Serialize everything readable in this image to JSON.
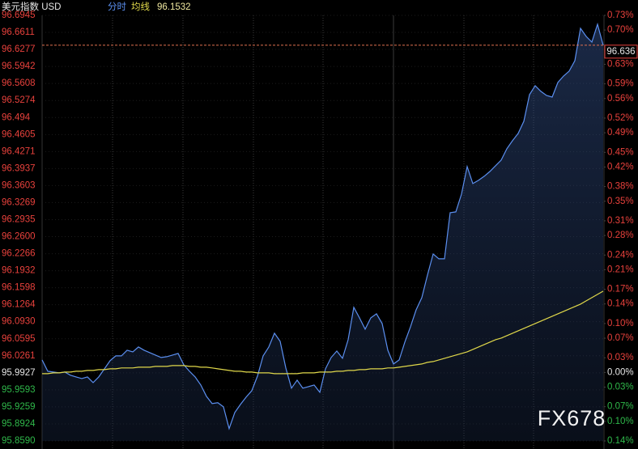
{
  "chart_data": {
    "type": "line",
    "title": "美元指数 USD",
    "watermark": "FX678",
    "current_price": 96.636,
    "ylim": [
      95.859,
      96.6945
    ],
    "yticks": [
      96.6945,
      96.6611,
      96.6277,
      96.5942,
      96.5608,
      96.5274,
      96.494,
      96.4605,
      96.4271,
      96.3937,
      96.3603,
      96.3269,
      96.2935,
      {
        "value": 96.26,
        "label": "96.2600"
      },
      96.2266,
      96.1932,
      96.1598,
      96.1264,
      {
        "value": 96.093,
        "label": "96.0930"
      },
      96.0595,
      96.0261,
      95.9927,
      95.9593,
      95.9259,
      95.8924,
      {
        "value": 95.859,
        "label": "95.8590"
      }
    ],
    "y2lim": [
      -0.14,
      0.73
    ],
    "y2ticks": [
      {
        "value": 0.73,
        "label": "0.73%"
      },
      {
        "value": 0.7,
        "label": "0.70%"
      },
      {
        "value": 0.66,
        "label": "0.66%"
      },
      {
        "value": 0.63,
        "label": "0.63%"
      },
      {
        "value": 0.59,
        "label": "0.59%"
      },
      {
        "value": 0.56,
        "label": "0.56%"
      },
      {
        "value": 0.52,
        "label": "0.52%"
      },
      {
        "value": 0.49,
        "label": "0.49%"
      },
      {
        "value": 0.45,
        "label": "0.45%"
      },
      {
        "value": 0.42,
        "label": "0.42%"
      },
      {
        "value": 0.38,
        "label": "0.38%"
      },
      {
        "value": 0.35,
        "label": "0.35%"
      },
      {
        "value": 0.31,
        "label": "0.31%"
      },
      {
        "value": 0.28,
        "label": "0.28%"
      },
      {
        "value": 0.24,
        "label": "0.24%"
      },
      {
        "value": 0.21,
        "label": "0.21%"
      },
      {
        "value": 0.17,
        "label": "0.17%"
      },
      {
        "value": 0.14,
        "label": "0.14%"
      },
      {
        "value": 0.1,
        "label": "0.10%"
      },
      {
        "value": 0.07,
        "label": "0.07%"
      },
      {
        "value": 0.03,
        "label": "0.03%"
      },
      {
        "value": 0,
        "label": "0.00%"
      },
      {
        "value": -0.03,
        "label": "0.03%"
      },
      {
        "value": -0.07,
        "label": "0.07%"
      },
      {
        "value": -0.1,
        "label": "0.10%"
      },
      {
        "value": -0.14,
        "label": "0.14%"
      }
    ],
    "series": [
      {
        "name": "分时",
        "color": "#5b8ff0",
        "values": [
          96.018,
          95.9958,
          95.9942,
          95.9926,
          95.9942,
          95.9879,
          95.9847,
          95.9815,
          95.9847,
          95.9736,
          95.9847,
          96.0006,
          96.0165,
          96.026,
          96.026,
          96.0371,
          96.0339,
          96.0434,
          96.0371,
          96.0323,
          96.0276,
          96.0228,
          96.0244,
          96.0276,
          96.0307,
          96.0085,
          95.9958,
          95.9847,
          95.9688,
          95.9466,
          95.9323,
          95.9339,
          95.9259,
          95.8831,
          95.9148,
          95.9307,
          95.945,
          95.9577,
          95.9863,
          96.026,
          96.0434,
          96.0704,
          96.0546,
          96.0022,
          95.9625,
          95.9783,
          95.9625,
          95.9656,
          95.9688,
          95.9545,
          96.0006,
          96.0228,
          96.0355,
          96.0212,
          96.0577,
          96.1213,
          96.1006,
          96.0784,
          96.1006,
          96.1086,
          96.0895,
          96.0371,
          96.0101,
          96.018,
          96.053,
          96.0831,
          96.1165,
          96.1403,
          96.1848,
          96.2261,
          96.2165,
          96.2165,
          96.3071,
          96.3086,
          96.3436,
          96.3976,
          96.3642,
          96.3706,
          96.3785,
          96.388,
          96.3992,
          96.4103,
          96.4325,
          96.4484,
          96.4627,
          96.4865,
          96.5389,
          96.5564,
          96.5453,
          96.5373,
          96.5341,
          96.5627,
          96.5754,
          96.585,
          96.6056,
          96.6691,
          96.6532,
          96.6421,
          96.6771,
          96.6358
        ]
      },
      {
        "name": "均线",
        "color": "#e0d84a",
        "last_value": 96.1532,
        "values": [
          95.991,
          95.991,
          95.9926,
          95.9926,
          95.9942,
          95.9942,
          95.9958,
          95.9958,
          95.9974,
          95.9974,
          95.999,
          95.999,
          96.0006,
          96.0006,
          96.0022,
          96.0022,
          96.0022,
          96.0037,
          96.0037,
          96.0037,
          96.0053,
          96.0053,
          96.0053,
          96.0069,
          96.0069,
          96.0069,
          96.0053,
          96.0053,
          96.0037,
          96.0037,
          96.0022,
          96.0006,
          95.999,
          95.9974,
          95.9958,
          95.9958,
          95.9942,
          95.9942,
          95.9926,
          95.9926,
          95.9926,
          95.991,
          95.991,
          95.991,
          95.991,
          95.991,
          95.9926,
          95.9926,
          95.9926,
          95.9942,
          95.9942,
          95.9942,
          95.9958,
          95.9958,
          95.9974,
          95.9974,
          95.999,
          95.999,
          96.0006,
          96.0006,
          96.0006,
          96.0022,
          96.0022,
          96.0037,
          96.0053,
          96.0069,
          96.0085,
          96.0101,
          96.0133,
          96.0149,
          96.018,
          96.0212,
          96.0244,
          96.0276,
          96.0307,
          96.0339,
          96.0387,
          96.0434,
          96.0482,
          96.053,
          96.0577,
          96.0609,
          96.0657,
          96.0704,
          96.0752,
          96.08,
          96.0847,
          96.0895,
          96.0943,
          96.099,
          96.1038,
          96.1086,
          96.1133,
          96.1181,
          96.1228,
          96.1276,
          96.134,
          96.1403,
          96.1467,
          96.153
        ]
      }
    ]
  }
}
